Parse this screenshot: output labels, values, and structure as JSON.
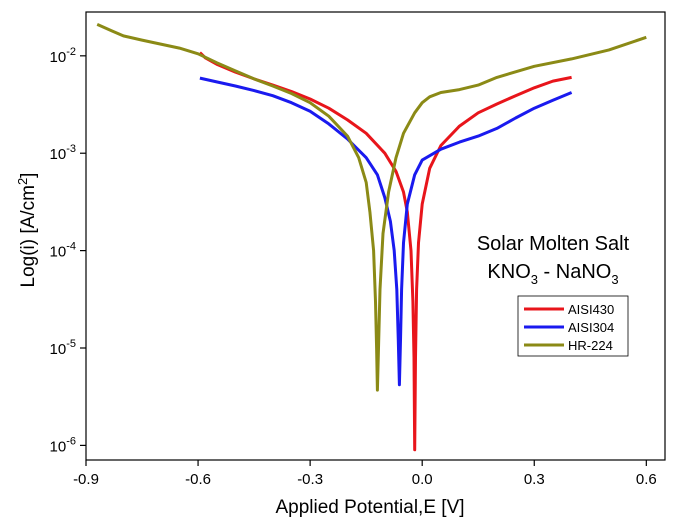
{
  "chart_data": {
    "type": "line",
    "xlabel": "Applied Potential,E [V]",
    "ylabel": "Log(i) [A/cm²]",
    "xlim": [
      -0.9,
      0.65
    ],
    "ylim_exponent": [
      -6.15,
      -1.55
    ],
    "y_scale": "log",
    "x_ticks": [
      "-0.9",
      "-0.6",
      "-0.3",
      "0.0",
      "0.3",
      "0.6"
    ],
    "y_ticks": [
      {
        "exp": "-6"
      },
      {
        "exp": "-5"
      },
      {
        "exp": "-4"
      },
      {
        "exp": "-3"
      },
      {
        "exp": "-2"
      }
    ],
    "y_tick_base": "10",
    "annotation": {
      "line1": "Solar Molten Salt",
      "line2": [
        "KNO",
        "3",
        " - NaNO",
        "3"
      ]
    },
    "legend_placement": "inside-right",
    "series": [
      {
        "name": "AISI430",
        "color": "#e8151b",
        "points": [
          [
            -0.595,
            0.0108
          ],
          [
            -0.58,
            0.0095
          ],
          [
            -0.55,
            0.0082
          ],
          [
            -0.5,
            0.0068
          ],
          [
            -0.45,
            0.0058
          ],
          [
            -0.4,
            0.005
          ],
          [
            -0.35,
            0.0043
          ],
          [
            -0.3,
            0.0036
          ],
          [
            -0.25,
            0.0029
          ],
          [
            -0.2,
            0.0022
          ],
          [
            -0.15,
            0.0016
          ],
          [
            -0.1,
            0.001
          ],
          [
            -0.07,
            0.00065
          ],
          [
            -0.05,
            0.0004
          ],
          [
            -0.04,
            0.00025
          ],
          [
            -0.03,
            0.0001
          ],
          [
            -0.025,
            3e-05
          ],
          [
            -0.022,
            8e-06
          ],
          [
            -0.02,
            9e-07
          ],
          [
            -0.018,
            8e-06
          ],
          [
            -0.015,
            4e-05
          ],
          [
            -0.01,
            0.00012
          ],
          [
            0.0,
            0.0003
          ],
          [
            0.02,
            0.0007
          ],
          [
            0.05,
            0.0012
          ],
          [
            0.1,
            0.0019
          ],
          [
            0.15,
            0.0026
          ],
          [
            0.2,
            0.0032
          ],
          [
            0.25,
            0.0039
          ],
          [
            0.3,
            0.0047
          ],
          [
            0.35,
            0.0055
          ],
          [
            0.4,
            0.006
          ]
        ]
      },
      {
        "name": "AISI304",
        "color": "#1a1aef",
        "points": [
          [
            -0.595,
            0.0059
          ],
          [
            -0.55,
            0.0054
          ],
          [
            -0.5,
            0.0049
          ],
          [
            -0.45,
            0.0044
          ],
          [
            -0.4,
            0.0039
          ],
          [
            -0.35,
            0.0033
          ],
          [
            -0.3,
            0.0027
          ],
          [
            -0.25,
            0.002
          ],
          [
            -0.2,
            0.0014
          ],
          [
            -0.15,
            0.0009
          ],
          [
            -0.12,
            0.0006
          ],
          [
            -0.1,
            0.00035
          ],
          [
            -0.085,
            0.0002
          ],
          [
            -0.075,
            0.0001
          ],
          [
            -0.068,
            4e-05
          ],
          [
            -0.064,
            1.2e-05
          ],
          [
            -0.061,
            4.2e-06
          ],
          [
            -0.058,
            1.2e-05
          ],
          [
            -0.055,
            4e-05
          ],
          [
            -0.05,
            0.00012
          ],
          [
            -0.04,
            0.0003
          ],
          [
            -0.02,
            0.0006
          ],
          [
            0.0,
            0.00085
          ],
          [
            0.05,
            0.0011
          ],
          [
            0.1,
            0.0013
          ],
          [
            0.15,
            0.0015
          ],
          [
            0.2,
            0.0018
          ],
          [
            0.25,
            0.0023
          ],
          [
            0.3,
            0.0029
          ],
          [
            0.35,
            0.0035
          ],
          [
            0.4,
            0.0042
          ]
        ]
      },
      {
        "name": "HR-224",
        "color": "#8b8a16",
        "points": [
          [
            -0.87,
            0.021
          ],
          [
            -0.83,
            0.018
          ],
          [
            -0.8,
            0.016
          ],
          [
            -0.75,
            0.0145
          ],
          [
            -0.7,
            0.0132
          ],
          [
            -0.65,
            0.012
          ],
          [
            -0.6,
            0.0105
          ],
          [
            -0.55,
            0.0085
          ],
          [
            -0.5,
            0.007
          ],
          [
            -0.45,
            0.0058
          ],
          [
            -0.4,
            0.0049
          ],
          [
            -0.35,
            0.0041
          ],
          [
            -0.3,
            0.0033
          ],
          [
            -0.25,
            0.0024
          ],
          [
            -0.2,
            0.0015
          ],
          [
            -0.17,
            0.0009
          ],
          [
            -0.15,
            0.0005
          ],
          [
            -0.14,
            0.00025
          ],
          [
            -0.13,
            0.0001
          ],
          [
            -0.125,
            3e-05
          ],
          [
            -0.122,
            1e-05
          ],
          [
            -0.12,
            3.7e-06
          ],
          [
            -0.117,
            1e-05
          ],
          [
            -0.113,
            4e-05
          ],
          [
            -0.105,
            0.00015
          ],
          [
            -0.09,
            0.0004
          ],
          [
            -0.07,
            0.0009
          ],
          [
            -0.05,
            0.0016
          ],
          [
            -0.02,
            0.0026
          ],
          [
            0.0,
            0.0033
          ],
          [
            0.02,
            0.0038
          ],
          [
            0.05,
            0.0042
          ],
          [
            0.1,
            0.0045
          ],
          [
            0.15,
            0.005
          ],
          [
            0.2,
            0.006
          ],
          [
            0.3,
            0.0078
          ],
          [
            0.4,
            0.0093
          ],
          [
            0.5,
            0.0115
          ],
          [
            0.6,
            0.0155
          ]
        ]
      }
    ]
  }
}
